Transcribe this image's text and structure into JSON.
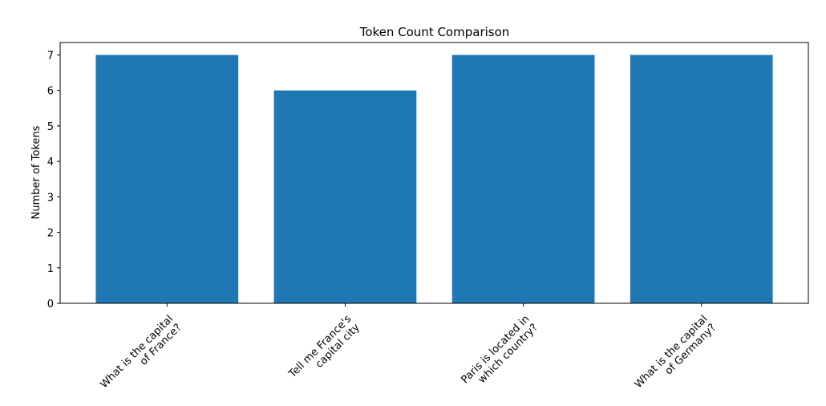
{
  "chart_data": {
    "type": "bar",
    "title": "Token Count Comparison",
    "y_label": "Number of Tokens",
    "categories": [
      "What is the capital\nof France?",
      "Tell me France's\ncapital city",
      "Paris is located in\nwhich country?",
      "What is the capital\nof Germany?"
    ],
    "values": [
      7,
      6,
      7,
      7
    ],
    "color": "#1f77b4",
    "ylim": [
      0,
      7.35
    ],
    "yticks": [
      0,
      1,
      2,
      3,
      4,
      5,
      6,
      7
    ],
    "grid": false
  }
}
